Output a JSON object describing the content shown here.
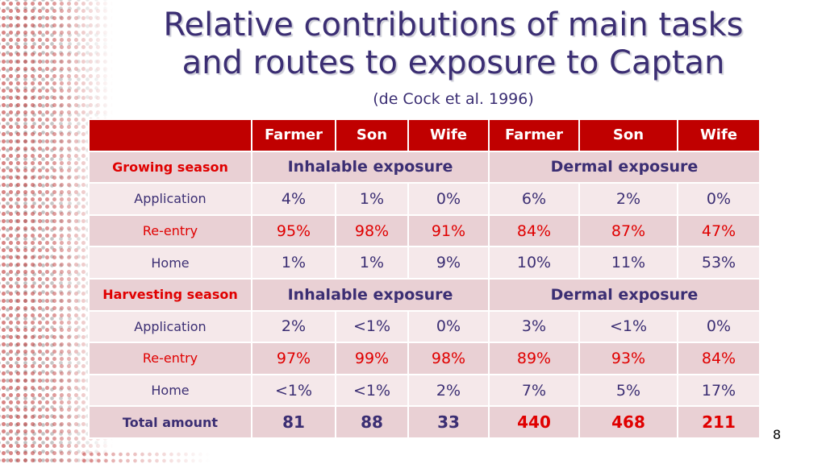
{
  "title_line1": "Relative contributions of main tasks",
  "title_line2": "and routes to exposure to Captan",
  "subtitle": "(de Cock et al. 1996)",
  "colors": {
    "header": "#c00000",
    "text": "#3b2e73",
    "accent_red": "#e00000",
    "row_light": "#f5e8ea",
    "row_dark": "#e9d0d4"
  },
  "columns": [
    "",
    "Farmer",
    "Son",
    "Wife",
    "Farmer",
    "Son",
    "Wife"
  ],
  "growing": {
    "season": "Growing season",
    "inhalable": "Inhalable exposure",
    "dermal": "Dermal exposure",
    "rows": [
      {
        "label": "Application",
        "values": [
          "4%",
          "1%",
          "0%",
          "6%",
          "2%",
          "0%"
        ]
      },
      {
        "label": "Re-entry",
        "values": [
          "95%",
          "98%",
          "91%",
          "84%",
          "87%",
          "47%"
        ]
      },
      {
        "label": "Home",
        "values": [
          "1%",
          "1%",
          "9%",
          "10%",
          "11%",
          "53%"
        ]
      }
    ]
  },
  "harvesting": {
    "season": "Harvesting season",
    "inhalable": "Inhalable exposure",
    "dermal": "Dermal exposure",
    "rows": [
      {
        "label": "Application",
        "values": [
          "2%",
          "<1%",
          "0%",
          "3%",
          "<1%",
          "0%"
        ]
      },
      {
        "label": "Re-entry",
        "values": [
          "97%",
          "99%",
          "98%",
          "89%",
          "93%",
          "84%"
        ]
      },
      {
        "label": "Home",
        "values": [
          "<1%",
          "<1%",
          "2%",
          "7%",
          "5%",
          "17%"
        ]
      }
    ]
  },
  "total": {
    "label": "Total amount",
    "values": [
      "81",
      "88",
      "33",
      "440",
      "468",
      "211"
    ]
  },
  "page_number": "8"
}
